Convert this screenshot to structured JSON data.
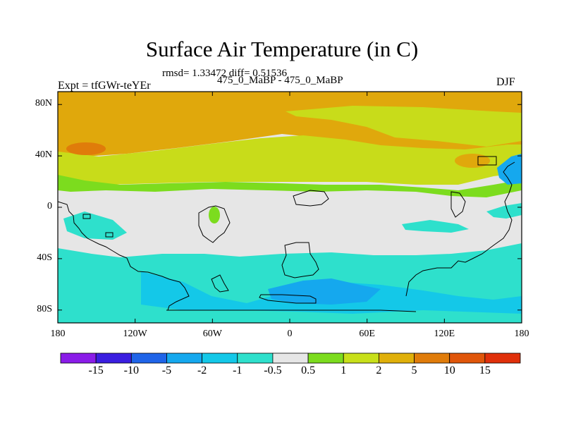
{
  "title": "Surface Air Temperature (in C)",
  "stats_line": "rmsd= 1.33472 diff= 0.51536",
  "expt_label": "Expt = tfGWr-teYEr",
  "diff_label": "475_0_MaBP - 475_0_MaBP",
  "season": "DJF",
  "axes": {
    "y_ticks": [
      "80N",
      "40N",
      "0",
      "40S",
      "80S"
    ],
    "x_ticks": [
      "180",
      "120W",
      "60W",
      "0",
      "60E",
      "120E",
      "180"
    ]
  },
  "colorbar": {
    "colors": [
      "#8a1ce8",
      "#3a1ee0",
      "#1f64e8",
      "#15a8ee",
      "#14c8e8",
      "#2ee0cc",
      "#e6e6e6",
      "#7cdc1e",
      "#c8e01a",
      "#e0b00a",
      "#e07c0a",
      "#e0560a",
      "#e0300a"
    ],
    "labels": [
      "-15",
      "-10",
      "-5",
      "-2",
      "-1",
      "-0.5",
      "0.5",
      "1",
      "2",
      "5",
      "10",
      "15"
    ]
  },
  "field_colors": {
    "land_background": "#e6e6e6",
    "warm_5_10": "#e0a80c",
    "warm_2_5": "#d4b40c",
    "warm_1_2": "#c8dc1a",
    "warm_05_1": "#7cdc1e",
    "hot_10_15": "#e07c0a",
    "cool_05_1": "#2ee0cc",
    "cool_1_2": "#14c8e8",
    "cold_2_5": "#15a8ee",
    "cold_5_10": "#1f64e8"
  }
}
